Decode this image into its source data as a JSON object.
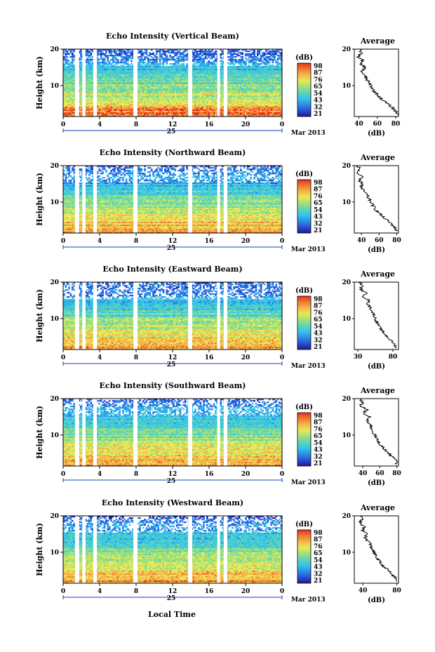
{
  "figure": {
    "xlabel": "Local Time",
    "date_label": "Mar 2013",
    "day_label": "25",
    "cbar_unit": "(dB)",
    "colorbar_ticks": [
      "98",
      "87",
      "76",
      "65",
      "54",
      "43",
      "32",
      "21"
    ],
    "avg_title": "Average",
    "avg_xlabel": "(dB)",
    "colors": {
      "scale": [
        "#1e1b8a",
        "#2c4fd6",
        "#2e8de6",
        "#35c3e8",
        "#5ed3b8",
        "#9fe07a",
        "#e8e85a",
        "#f2b84a",
        "#f07a32",
        "#e3321f"
      ],
      "gap": "#ffffff",
      "line": "#000000"
    }
  },
  "chart_data": [
    {
      "type": "heatmap",
      "title": "Echo Intensity (Vertical Beam)",
      "ylabel": "Height (km)",
      "xticks": [
        "0",
        "4",
        "8",
        "12",
        "16",
        "20",
        "0"
      ],
      "yticks": [
        "20",
        "10"
      ],
      "xlim": [
        0,
        24
      ],
      "ylim": [
        1.5,
        20
      ],
      "base_intensity": "high",
      "avg_profile": {
        "title": "Average",
        "xlabel": "(dB)",
        "xticks": [
          "40",
          "60",
          "80"
        ],
        "xlim": [
          35,
          83
        ],
        "yticks": [
          "20",
          "10"
        ],
        "ylim": [
          1.5,
          20
        ],
        "height_km": [
          20,
          19,
          18,
          17,
          16,
          15,
          14,
          13,
          12,
          11,
          10,
          9,
          8,
          7,
          6,
          5,
          4,
          3,
          2
        ],
        "db": [
          40,
          43,
          39,
          44,
          41,
          47,
          43,
          45,
          48,
          50,
          53,
          55,
          58,
          62,
          66,
          71,
          76,
          80,
          82
        ]
      }
    },
    {
      "type": "heatmap",
      "title": "Echo Intensity (Northward Beam)",
      "ylabel": "Height (km)",
      "xticks": [
        "0",
        "4",
        "8",
        "12",
        "16",
        "20",
        "0"
      ],
      "yticks": [
        "20",
        "10"
      ],
      "xlim": [
        0,
        24
      ],
      "ylim": [
        1.5,
        20
      ],
      "base_intensity": "medium",
      "avg_profile": {
        "title": "Average",
        "xlabel": "(dB)",
        "xticks": [
          "40",
          "60",
          "80"
        ],
        "xlim": [
          32,
          82
        ],
        "yticks": [
          "20",
          "10"
        ],
        "ylim": [
          1.5,
          20
        ],
        "height_km": [
          20,
          19,
          18,
          17,
          16,
          15,
          14,
          13,
          12,
          11,
          10,
          9,
          8,
          7,
          6,
          5,
          4,
          3,
          2
        ],
        "db": [
          36,
          38,
          35,
          40,
          37,
          42,
          39,
          43,
          46,
          48,
          51,
          53,
          56,
          60,
          64,
          69,
          74,
          78,
          80
        ]
      }
    },
    {
      "type": "heatmap",
      "title": "Echo Intensity (Eastward Beam)",
      "ylabel": "Height (km)",
      "xticks": [
        "0",
        "4",
        "8",
        "12",
        "16",
        "20",
        "0"
      ],
      "yticks": [
        "20",
        "10"
      ],
      "xlim": [
        0,
        24
      ],
      "ylim": [
        1.5,
        20
      ],
      "base_intensity": "medium",
      "avg_profile": {
        "title": "Average",
        "xlabel": "(dB)",
        "xticks": [
          "30",
          "80"
        ],
        "xlim": [
          25,
          88
        ],
        "yticks": [
          "20",
          "10"
        ],
        "ylim": [
          1.5,
          20
        ],
        "height_km": [
          20,
          19,
          18,
          17,
          16,
          15,
          14,
          13,
          12,
          11,
          10,
          9,
          8,
          7,
          6,
          5,
          4,
          3,
          2
        ],
        "db": [
          33,
          36,
          34,
          42,
          38,
          46,
          44,
          48,
          50,
          53,
          55,
          57,
          60,
          63,
          67,
          72,
          77,
          82,
          85
        ]
      }
    },
    {
      "type": "heatmap",
      "title": "Echo Intensity (Southward Beam)",
      "ylabel": "Height (km)",
      "xticks": [
        "0",
        "4",
        "8",
        "12",
        "16",
        "20",
        "0"
      ],
      "yticks": [
        "20",
        "10"
      ],
      "xlim": [
        0,
        24
      ],
      "ylim": [
        1.5,
        20
      ],
      "base_intensity": "medium",
      "avg_profile": {
        "title": "Average",
        "xlabel": "(dB)",
        "xticks": [
          "40",
          "60",
          "80"
        ],
        "xlim": [
          30,
          82
        ],
        "yticks": [
          "20",
          "10"
        ],
        "ylim": [
          1.5,
          20
        ],
        "height_km": [
          20,
          19,
          18,
          17,
          16,
          15,
          14,
          13,
          12,
          11,
          10,
          9,
          8,
          7,
          6,
          5,
          4,
          3,
          2
        ],
        "db": [
          36,
          40,
          37,
          45,
          40,
          48,
          44,
          49,
          50,
          52,
          54,
          56,
          59,
          62,
          66,
          70,
          75,
          79,
          80
        ]
      }
    },
    {
      "type": "heatmap",
      "title": "Echo Intensity (Westward Beam)",
      "ylabel": "Height (km)",
      "xticks": [
        "0",
        "4",
        "8",
        "12",
        "16",
        "20",
        "0"
      ],
      "yticks": [
        "20",
        "10"
      ],
      "xlim": [
        0,
        24
      ],
      "ylim": [
        1.5,
        20
      ],
      "base_intensity": "medium",
      "avg_profile": {
        "title": "Average",
        "xlabel": "(dB)",
        "xticks": [
          "40",
          "80"
        ],
        "xlim": [
          30,
          82
        ],
        "yticks": [
          "20",
          "10"
        ],
        "ylim": [
          1.5,
          20
        ],
        "height_km": [
          20,
          19,
          18,
          17,
          16,
          15,
          14,
          13,
          12,
          11,
          10,
          9,
          8,
          7,
          6,
          5,
          4,
          3,
          2
        ],
        "db": [
          37,
          39,
          36,
          42,
          39,
          46,
          42,
          47,
          49,
          51,
          53,
          55,
          58,
          61,
          65,
          70,
          74,
          78,
          80
        ]
      }
    }
  ]
}
